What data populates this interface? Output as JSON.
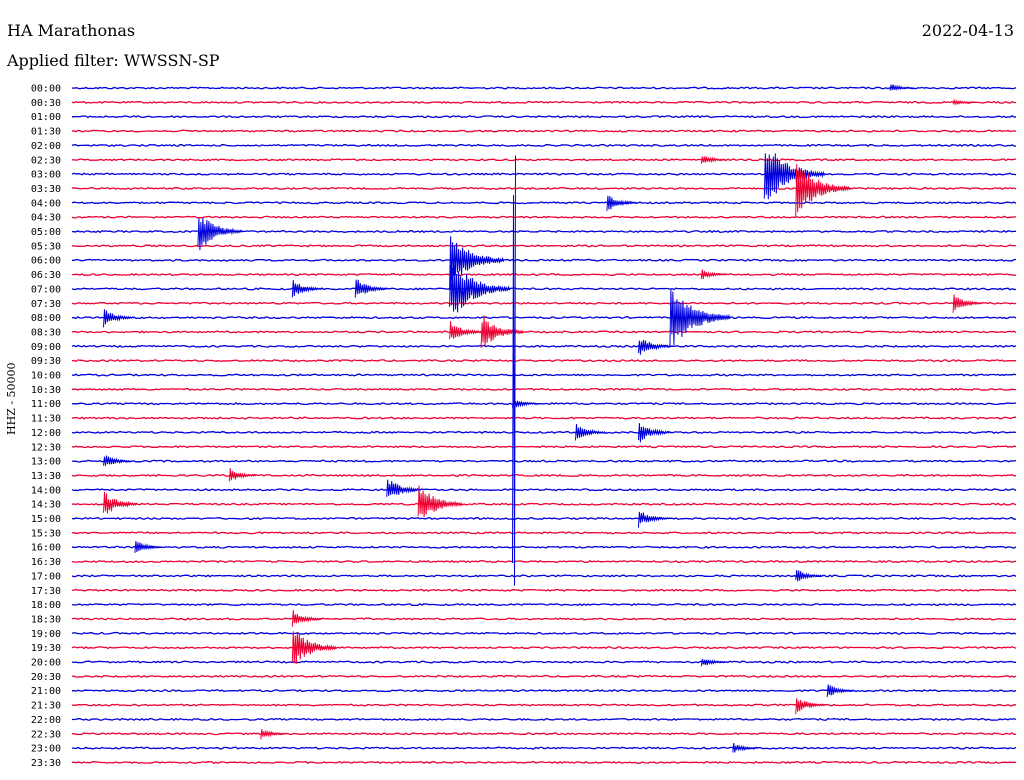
{
  "header": {
    "station": "HA Marathonas",
    "date": "2022-04-13",
    "filter": "Applied filter: WWSSN-SP"
  },
  "chart_data": {
    "type": "line",
    "title": "HA Marathonas",
    "ylabel": "HHZ - 50000",
    "colors": [
      "#0000dd",
      "#ee0033"
    ],
    "rows": [
      "00:00",
      "00:30",
      "01:00",
      "01:30",
      "02:00",
      "02:30",
      "03:00",
      "03:30",
      "04:00",
      "04:30",
      "05:00",
      "05:30",
      "06:00",
      "06:30",
      "07:00",
      "07:30",
      "08:00",
      "08:30",
      "09:00",
      "09:30",
      "10:00",
      "10:30",
      "11:00",
      "11:30",
      "12:00",
      "12:30",
      "13:00",
      "13:30",
      "14:00",
      "14:30",
      "15:00",
      "15:30",
      "16:00",
      "16:30",
      "17:00",
      "17:30",
      "18:00",
      "18:30",
      "19:00",
      "19:30",
      "20:00",
      "20:30",
      "21:00",
      "21:30",
      "22:00",
      "22:30",
      "23:00",
      "23:30"
    ],
    "events": [
      {
        "row": "00:00",
        "minute": 26,
        "amp": 5
      },
      {
        "row": "00:30",
        "minute": 28,
        "amp": 3
      },
      {
        "row": "02:30",
        "minute": 20,
        "amp": 6
      },
      {
        "row": "03:00",
        "minute": 22,
        "amp": 35
      },
      {
        "row": "03:30",
        "minute": 23,
        "amp": 30
      },
      {
        "row": "04:00",
        "minute": 17,
        "amp": 10
      },
      {
        "row": "05:00",
        "minute": 4,
        "amp": 22
      },
      {
        "row": "06:00",
        "minute": 12,
        "amp": 30
      },
      {
        "row": "06:30",
        "minute": 20,
        "amp": 6
      },
      {
        "row": "07:00",
        "minute": 7,
        "amp": 10
      },
      {
        "row": "07:00",
        "minute": 9,
        "amp": 12
      },
      {
        "row": "07:00",
        "minute": 12,
        "amp": 35
      },
      {
        "row": "07:30",
        "minute": 28,
        "amp": 10
      },
      {
        "row": "08:00",
        "minute": 1,
        "amp": 10
      },
      {
        "row": "08:00",
        "minute": 19,
        "amp": 35
      },
      {
        "row": "08:30",
        "minute": 12,
        "amp": 12
      },
      {
        "row": "08:30",
        "minute": 13,
        "amp": 20
      },
      {
        "row": "09:00",
        "minute": 18,
        "amp": 12
      },
      {
        "row": "11:00",
        "minute": 14,
        "amp": 6
      },
      {
        "row": "12:00",
        "minute": 16,
        "amp": 10
      },
      {
        "row": "12:00",
        "minute": 18,
        "amp": 12
      },
      {
        "row": "13:00",
        "minute": 1,
        "amp": 8
      },
      {
        "row": "13:30",
        "minute": 5,
        "amp": 8
      },
      {
        "row": "14:00",
        "minute": 10,
        "amp": 14
      },
      {
        "row": "14:30",
        "minute": 1,
        "amp": 14
      },
      {
        "row": "14:30",
        "minute": 11,
        "amp": 22
      },
      {
        "row": "15:00",
        "minute": 18,
        "amp": 10
      },
      {
        "row": "16:00",
        "minute": 2,
        "amp": 8
      },
      {
        "row": "17:00",
        "minute": 23,
        "amp": 8
      },
      {
        "row": "18:30",
        "minute": 7,
        "amp": 10
      },
      {
        "row": "19:30",
        "minute": 7,
        "amp": 22
      },
      {
        "row": "20:00",
        "minute": 20,
        "amp": 6
      },
      {
        "row": "21:00",
        "minute": 24,
        "amp": 8
      },
      {
        "row": "21:30",
        "minute": 23,
        "amp": 10
      },
      {
        "row": "22:30",
        "minute": 6,
        "amp": 6
      },
      {
        "row": "23:00",
        "minute": 21,
        "amp": 6
      }
    ],
    "spikes": [
      {
        "row": "11:00",
        "minute": 14,
        "amp": 250
      }
    ],
    "grid": false
  }
}
